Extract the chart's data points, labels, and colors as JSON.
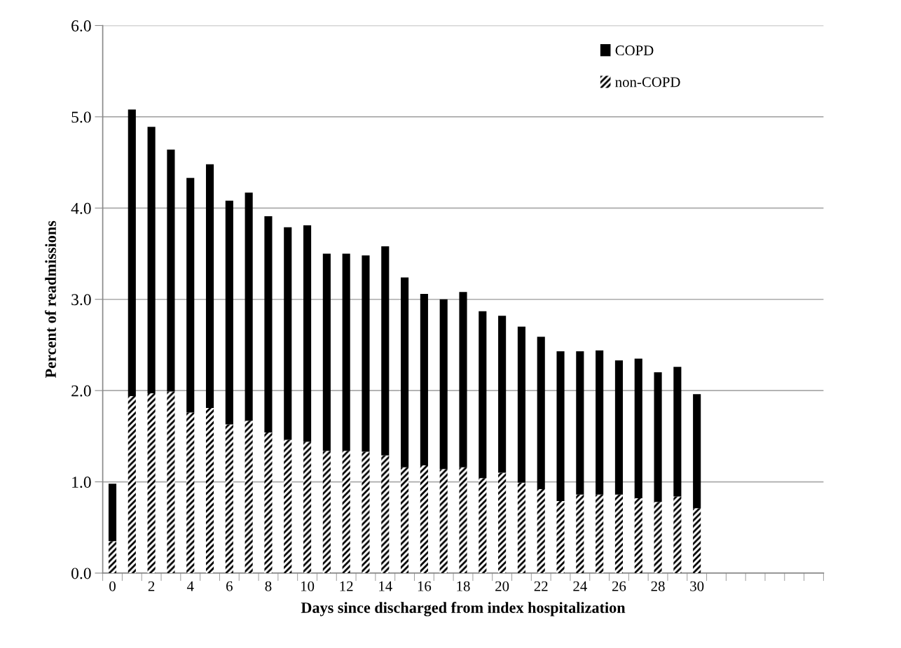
{
  "chart_data": {
    "type": "bar",
    "xlabel": "Days since discharged from index hospitalization",
    "ylabel": "Percent of readmissions",
    "categories": [
      "0",
      null,
      "2",
      null,
      "4",
      null,
      "6",
      null,
      "8",
      null,
      "10",
      null,
      "12",
      null,
      "14",
      null,
      "16",
      null,
      "18",
      null,
      "20",
      null,
      "22",
      null,
      "24",
      null,
      "26",
      null,
      "28",
      null,
      "30",
      null,
      null,
      null,
      null,
      null,
      null
    ],
    "stacked": true,
    "series": [
      {
        "name": "non-COPD",
        "color": "#ffffff",
        "values": [
          0.35,
          1.94,
          1.97,
          1.99,
          1.76,
          1.81,
          1.63,
          1.67,
          1.54,
          1.46,
          1.44,
          1.34,
          1.34,
          1.33,
          1.29,
          1.16,
          1.18,
          1.14,
          1.16,
          1.04,
          1.1,
          0.99,
          0.92,
          0.79,
          0.86,
          0.86,
          0.86,
          0.82,
          0.78,
          0.84,
          0.71,
          null,
          null,
          null,
          null,
          null,
          null
        ]
      },
      {
        "name": "COPD",
        "color": "#000000",
        "values": [
          0.63,
          3.14,
          2.92,
          2.65,
          2.57,
          2.67,
          2.45,
          2.5,
          2.37,
          2.33,
          2.37,
          2.16,
          2.16,
          2.15,
          2.29,
          2.08,
          1.88,
          1.86,
          1.92,
          1.83,
          1.72,
          1.71,
          1.67,
          1.64,
          1.57,
          1.58,
          1.47,
          1.53,
          1.42,
          1.42,
          1.25,
          null,
          null,
          null,
          null,
          null,
          null
        ]
      }
    ],
    "ylim": [
      0,
      6
    ],
    "yticks": [
      {
        "value": 0,
        "label": "0.0"
      },
      {
        "value": 1,
        "label": "1.0"
      },
      {
        "value": 2,
        "label": "2.0"
      },
      {
        "value": 3,
        "label": "3.0"
      },
      {
        "value": 4,
        "label": "4.0"
      },
      {
        "value": 5,
        "label": "5.0"
      },
      {
        "value": 6,
        "label": "6.0"
      }
    ],
    "grid": "y",
    "legend": "top right"
  }
}
